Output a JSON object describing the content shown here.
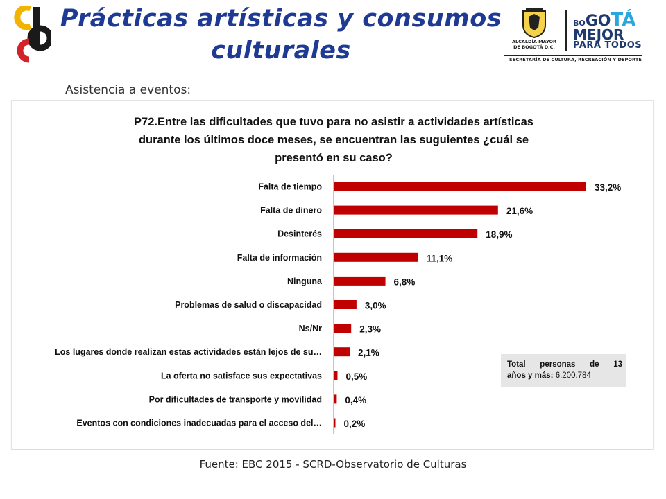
{
  "header": {
    "title_line1": "Prácticas artísticas y consumos",
    "title_line2": "culturales",
    "gov_alcaldia_1": "ALCALDÍA MAYOR",
    "gov_alcaldia_2": "DE BOGOTÁ D.C.",
    "gov_bogota_small": "BO",
    "gov_bogota_big": "GO",
    "gov_bogota_accent": "TÁ",
    "gov_mejor": "MEJOR",
    "gov_paratodos": "PARA TODOS",
    "gov_secretaria": "SECRETARÍA DE CULTURA, RECREACIÓN Y DEPORTE"
  },
  "subtitle": "Asistencia a eventos:",
  "chart_data": {
    "type": "bar",
    "orientation": "horizontal",
    "title": "P72.Entre las dificultades que tuvo para no asistir a actividades artísticas durante los últimos doce meses, se encuentran las suguientes ¿cuál se presentó en su caso?",
    "title_lines": [
      "P72.Entre las dificultades que tuvo para no asistir a actividades artísticas",
      "durante los últimos doce meses, se encuentran las suguientes ¿cuál se",
      "presentó en su caso?"
    ],
    "categories": [
      "Falta de tiempo",
      "Falta de dinero",
      "Desinterés",
      "Falta de información",
      "Ninguna",
      "Problemas de salud o discapacidad",
      "Ns/Nr",
      "Los lugares donde realizan estas actividades están lejos de su…",
      "La oferta no satisface sus expectativas",
      "Por dificultades de transporte y movilidad",
      "Eventos con condiciones inadecuadas para el acceso del…"
    ],
    "values": [
      33.2,
      21.6,
      18.9,
      11.1,
      6.8,
      3.0,
      2.3,
      2.1,
      0.5,
      0.4,
      0.2
    ],
    "value_labels": [
      "33,2%",
      "21,6%",
      "18,9%",
      "11,1%",
      "6,8%",
      "3,0%",
      "2,3%",
      "2,1%",
      "0,5%",
      "0,4%",
      "0,2%"
    ],
    "unit": "%",
    "xlim": [
      0,
      34
    ],
    "grid": false,
    "bar_color": "#c00000"
  },
  "total_box": {
    "label_line1": "Total personas de 13",
    "label_line2": "años y más:",
    "value": "6.200.784"
  },
  "source": "Fuente: EBC  2015 - SCRD-Observatorio  de Culturas",
  "colors": {
    "title_blue": "#1f3a93",
    "bar_red": "#c00000",
    "logo_yellow": "#f2b400",
    "logo_red": "#d2232a"
  }
}
